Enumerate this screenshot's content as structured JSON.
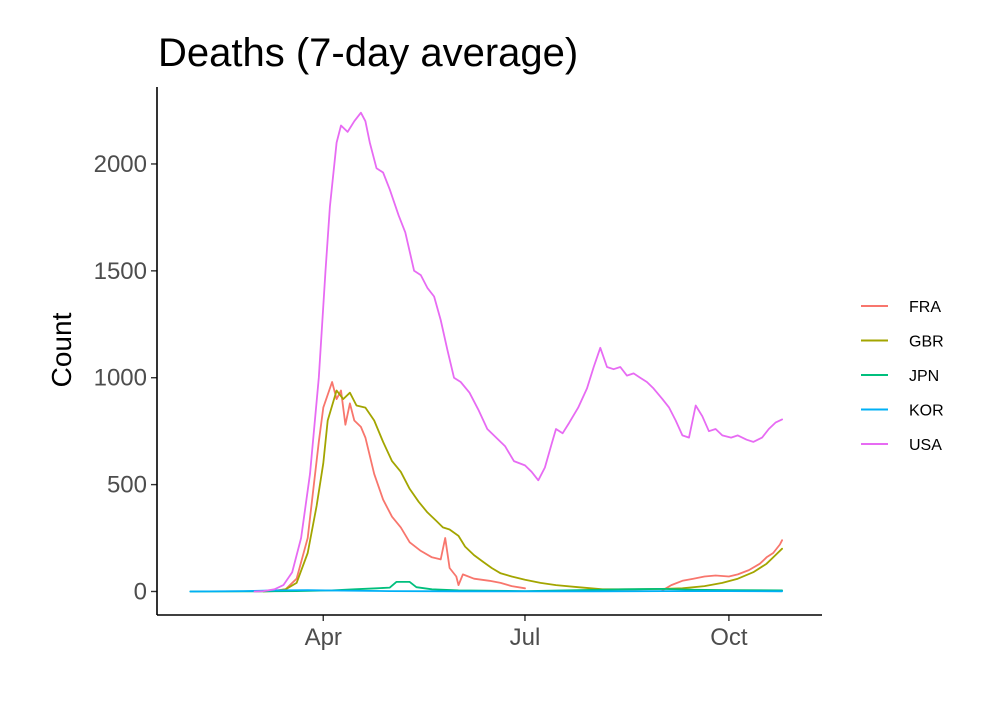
{
  "chart_data": {
    "type": "line",
    "title": "Deaths (7-day average)",
    "xlabel": "",
    "ylabel": "Count",
    "x_type": "date",
    "xlim": [
      "2020-01-17",
      "2020-11-12"
    ],
    "ylim": [
      -110,
      2360
    ],
    "x_ticks": [
      {
        "date": "2020-04-01",
        "label": "Apr"
      },
      {
        "date": "2020-07-01",
        "label": "Jul"
      },
      {
        "date": "2020-10-01",
        "label": "Oct"
      }
    ],
    "y_ticks": [
      0,
      500,
      1000,
      1500,
      2000
    ],
    "grid": false,
    "legend": {
      "position": "right"
    },
    "series": [
      {
        "name": "FRA",
        "color": "#F8766D",
        "points": [
          [
            "2020-03-01",
            0
          ],
          [
            "2020-03-08",
            2
          ],
          [
            "2020-03-15",
            10
          ],
          [
            "2020-03-20",
            60
          ],
          [
            "2020-03-25",
            250
          ],
          [
            "2020-03-30",
            700
          ],
          [
            "2020-04-01",
            860
          ],
          [
            "2020-04-05",
            980
          ],
          [
            "2020-04-07",
            900
          ],
          [
            "2020-04-09",
            940
          ],
          [
            "2020-04-11",
            780
          ],
          [
            "2020-04-13",
            880
          ],
          [
            "2020-04-15",
            800
          ],
          [
            "2020-04-18",
            770
          ],
          [
            "2020-04-20",
            720
          ],
          [
            "2020-04-24",
            550
          ],
          [
            "2020-04-28",
            430
          ],
          [
            "2020-05-02",
            350
          ],
          [
            "2020-05-06",
            300
          ],
          [
            "2020-05-10",
            230
          ],
          [
            "2020-05-15",
            190
          ],
          [
            "2020-05-20",
            160
          ],
          [
            "2020-05-24",
            150
          ],
          [
            "2020-05-26",
            250
          ],
          [
            "2020-05-28",
            110
          ],
          [
            "2020-05-31",
            70
          ],
          [
            "2020-06-01",
            30
          ],
          [
            "2020-06-03",
            80
          ],
          [
            "2020-06-08",
            60
          ],
          [
            "2020-06-15",
            50
          ],
          [
            "2020-06-20",
            40
          ],
          [
            "2020-06-25",
            25
          ],
          [
            "2020-07-01",
            15
          ]
        ],
        "points_late": [
          [
            "2020-09-01",
            5
          ],
          [
            "2020-09-05",
            30
          ],
          [
            "2020-09-10",
            50
          ],
          [
            "2020-09-15",
            60
          ],
          [
            "2020-09-20",
            70
          ],
          [
            "2020-09-25",
            75
          ],
          [
            "2020-10-01",
            70
          ],
          [
            "2020-10-05",
            80
          ],
          [
            "2020-10-10",
            100
          ],
          [
            "2020-10-15",
            130
          ],
          [
            "2020-10-18",
            160
          ],
          [
            "2020-10-21",
            180
          ],
          [
            "2020-10-24",
            220
          ],
          [
            "2020-10-25",
            240
          ]
        ]
      },
      {
        "name": "GBR",
        "color": "#A3A500",
        "points": [
          [
            "2020-03-05",
            0
          ],
          [
            "2020-03-10",
            2
          ],
          [
            "2020-03-15",
            10
          ],
          [
            "2020-03-20",
            40
          ],
          [
            "2020-03-25",
            180
          ],
          [
            "2020-03-29",
            400
          ],
          [
            "2020-04-01",
            600
          ],
          [
            "2020-04-03",
            800
          ],
          [
            "2020-04-07",
            940
          ],
          [
            "2020-04-10",
            900
          ],
          [
            "2020-04-13",
            930
          ],
          [
            "2020-04-16",
            870
          ],
          [
            "2020-04-20",
            860
          ],
          [
            "2020-04-24",
            800
          ],
          [
            "2020-04-28",
            700
          ],
          [
            "2020-05-02",
            610
          ],
          [
            "2020-05-06",
            560
          ],
          [
            "2020-05-10",
            480
          ],
          [
            "2020-05-14",
            420
          ],
          [
            "2020-05-18",
            370
          ],
          [
            "2020-05-22",
            330
          ],
          [
            "2020-05-25",
            300
          ],
          [
            "2020-05-28",
            290
          ],
          [
            "2020-06-01",
            260
          ],
          [
            "2020-06-04",
            210
          ],
          [
            "2020-06-08",
            170
          ],
          [
            "2020-06-12",
            140
          ],
          [
            "2020-06-16",
            110
          ],
          [
            "2020-06-20",
            85
          ],
          [
            "2020-06-25",
            70
          ],
          [
            "2020-07-01",
            55
          ],
          [
            "2020-07-08",
            40
          ],
          [
            "2020-07-15",
            30
          ],
          [
            "2020-07-25",
            20
          ],
          [
            "2020-08-05",
            10
          ],
          [
            "2020-08-20",
            10
          ],
          [
            "2020-09-01",
            12
          ],
          [
            "2020-09-10",
            15
          ],
          [
            "2020-09-20",
            25
          ],
          [
            "2020-09-28",
            40
          ],
          [
            "2020-10-05",
            60
          ],
          [
            "2020-10-12",
            90
          ],
          [
            "2020-10-18",
            130
          ],
          [
            "2020-10-22",
            170
          ],
          [
            "2020-10-25",
            200
          ]
        ]
      },
      {
        "name": "JPN",
        "color": "#00BF7D",
        "points": [
          [
            "2020-02-01",
            0
          ],
          [
            "2020-03-01",
            1
          ],
          [
            "2020-03-20",
            2
          ],
          [
            "2020-04-05",
            5
          ],
          [
            "2020-04-15",
            10
          ],
          [
            "2020-04-25",
            15
          ],
          [
            "2020-05-01",
            18
          ],
          [
            "2020-05-04",
            45
          ],
          [
            "2020-05-10",
            45
          ],
          [
            "2020-05-13",
            20
          ],
          [
            "2020-05-20",
            10
          ],
          [
            "2020-06-01",
            5
          ],
          [
            "2020-07-01",
            2
          ],
          [
            "2020-08-15",
            10
          ],
          [
            "2020-09-01",
            12
          ],
          [
            "2020-09-15",
            8
          ],
          [
            "2020-10-01",
            6
          ],
          [
            "2020-10-25",
            5
          ]
        ]
      },
      {
        "name": "KOR",
        "color": "#00B0F6",
        "points": [
          [
            "2020-02-01",
            0
          ],
          [
            "2020-02-25",
            2
          ],
          [
            "2020-03-10",
            5
          ],
          [
            "2020-03-25",
            6
          ],
          [
            "2020-04-10",
            4
          ],
          [
            "2020-05-01",
            2
          ],
          [
            "2020-06-01",
            1
          ],
          [
            "2020-07-01",
            1
          ],
          [
            "2020-08-01",
            1
          ],
          [
            "2020-09-01",
            2
          ],
          [
            "2020-10-01",
            2
          ],
          [
            "2020-10-25",
            1
          ]
        ]
      },
      {
        "name": "USA",
        "color": "#E76BF3",
        "points": [
          [
            "2020-03-01",
            0
          ],
          [
            "2020-03-05",
            2
          ],
          [
            "2020-03-10",
            10
          ],
          [
            "2020-03-14",
            30
          ],
          [
            "2020-03-18",
            90
          ],
          [
            "2020-03-22",
            250
          ],
          [
            "2020-03-26",
            550
          ],
          [
            "2020-03-30",
            1000
          ],
          [
            "2020-04-02",
            1500
          ],
          [
            "2020-04-04",
            1800
          ],
          [
            "2020-04-07",
            2100
          ],
          [
            "2020-04-09",
            2180
          ],
          [
            "2020-04-12",
            2150
          ],
          [
            "2020-04-15",
            2200
          ],
          [
            "2020-04-18",
            2240
          ],
          [
            "2020-04-20",
            2200
          ],
          [
            "2020-04-22",
            2100
          ],
          [
            "2020-04-25",
            1980
          ],
          [
            "2020-04-28",
            1960
          ],
          [
            "2020-05-01",
            1880
          ],
          [
            "2020-05-05",
            1760
          ],
          [
            "2020-05-08",
            1680
          ],
          [
            "2020-05-12",
            1500
          ],
          [
            "2020-05-15",
            1480
          ],
          [
            "2020-05-18",
            1420
          ],
          [
            "2020-05-21",
            1380
          ],
          [
            "2020-05-24",
            1270
          ],
          [
            "2020-05-27",
            1130
          ],
          [
            "2020-05-30",
            1000
          ],
          [
            "2020-06-02",
            980
          ],
          [
            "2020-06-06",
            930
          ],
          [
            "2020-06-10",
            850
          ],
          [
            "2020-06-14",
            760
          ],
          [
            "2020-06-18",
            720
          ],
          [
            "2020-06-22",
            680
          ],
          [
            "2020-06-26",
            610
          ],
          [
            "2020-07-01",
            590
          ],
          [
            "2020-07-04",
            560
          ],
          [
            "2020-07-07",
            520
          ],
          [
            "2020-07-10",
            580
          ],
          [
            "2020-07-13",
            690
          ],
          [
            "2020-07-15",
            760
          ],
          [
            "2020-07-18",
            740
          ],
          [
            "2020-07-21",
            790
          ],
          [
            "2020-07-25",
            860
          ],
          [
            "2020-07-29",
            950
          ],
          [
            "2020-08-01",
            1050
          ],
          [
            "2020-08-04",
            1140
          ],
          [
            "2020-08-07",
            1050
          ],
          [
            "2020-08-10",
            1040
          ],
          [
            "2020-08-13",
            1050
          ],
          [
            "2020-08-16",
            1010
          ],
          [
            "2020-08-19",
            1020
          ],
          [
            "2020-08-22",
            1000
          ],
          [
            "2020-08-25",
            980
          ],
          [
            "2020-08-28",
            950
          ],
          [
            "2020-09-01",
            900
          ],
          [
            "2020-09-04",
            860
          ],
          [
            "2020-09-07",
            800
          ],
          [
            "2020-09-10",
            730
          ],
          [
            "2020-09-13",
            720
          ],
          [
            "2020-09-16",
            870
          ],
          [
            "2020-09-19",
            820
          ],
          [
            "2020-09-22",
            750
          ],
          [
            "2020-09-25",
            760
          ],
          [
            "2020-09-28",
            730
          ],
          [
            "2020-10-02",
            720
          ],
          [
            "2020-10-05",
            730
          ],
          [
            "2020-10-09",
            710
          ],
          [
            "2020-10-12",
            700
          ],
          [
            "2020-10-16",
            720
          ],
          [
            "2020-10-19",
            760
          ],
          [
            "2020-10-22",
            790
          ],
          [
            "2020-10-25",
            805
          ]
        ]
      }
    ]
  }
}
